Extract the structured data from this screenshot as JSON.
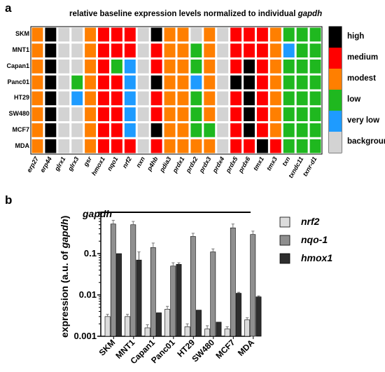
{
  "panel_a": {
    "letter": "a",
    "title_prefix": "relative baseline expression levels normalized to individual ",
    "title_gene": "gapdh"
  },
  "panel_b": {
    "letter": "b",
    "ylabel_prefix": "expression (a.u. of ",
    "ylabel_gene": "gapdh",
    "ylabel_suffix": ")",
    "reference_label": "gapdh"
  },
  "colors": {
    "high": "#000000",
    "medium": "#ff0000",
    "modest": "#ff7f00",
    "low": "#1fb81f",
    "very_low": "#1e9bff",
    "background": "#d3d3d3",
    "nrf2": "#dcdcdc",
    "nqo1": "#8f8f8f",
    "hmox1": "#2e2e2e"
  },
  "chart_data": [
    {
      "type": "heatmap",
      "title": "relative baseline expression levels normalized to individual gapdh",
      "rows": [
        "SKM",
        "MNT1",
        "Capan1",
        "Panc01",
        "HT29",
        "SW480",
        "MCF7",
        "MDA"
      ],
      "columns": [
        "erp27",
        "erp44",
        "glrx1",
        "glrx3",
        "gsr",
        "hmox1",
        "nqo1",
        "nrf2",
        "nxn",
        "p4hb",
        "pdia3",
        "prdx1",
        "prdx2",
        "prdx3",
        "prdx4",
        "prdx5",
        "prdx6",
        "tmx1",
        "tmx3",
        "txn",
        "txndc11",
        "txnr-d1"
      ],
      "legend": [
        {
          "key": "high",
          "label": "high"
        },
        {
          "key": "medium",
          "label": "medium"
        },
        {
          "key": "modest",
          "label": "modest"
        },
        {
          "key": "low",
          "label": "low"
        },
        {
          "key": "very_low",
          "label": "very low"
        },
        {
          "key": "background",
          "label": "background"
        }
      ],
      "values": [
        [
          "modest",
          "high",
          "background",
          "background",
          "modest",
          "medium",
          "medium",
          "medium",
          "background",
          "high",
          "modest",
          "modest",
          "background",
          "modest",
          "background",
          "medium",
          "medium",
          "medium",
          "modest",
          "low",
          "low",
          "low"
        ],
        [
          "modest",
          "high",
          "background",
          "background",
          "modest",
          "medium",
          "medium",
          "medium",
          "background",
          "medium",
          "modest",
          "modest",
          "low",
          "modest",
          "background",
          "medium",
          "medium",
          "medium",
          "modest",
          "very_low",
          "low",
          "low"
        ],
        [
          "modest",
          "high",
          "background",
          "background",
          "modest",
          "medium",
          "low",
          "very_low",
          "background",
          "medium",
          "modest",
          "modest",
          "low",
          "modest",
          "background",
          "medium",
          "high",
          "medium",
          "modest",
          "low",
          "low",
          "low"
        ],
        [
          "modest",
          "high",
          "background",
          "low",
          "modest",
          "medium",
          "medium",
          "very_low",
          "background",
          "high",
          "modest",
          "modest",
          "very_low",
          "modest",
          "background",
          "high",
          "high",
          "medium",
          "modest",
          "low",
          "low",
          "low"
        ],
        [
          "modest",
          "high",
          "background",
          "very_low",
          "modest",
          "medium",
          "medium",
          "very_low",
          "background",
          "medium",
          "modest",
          "modest",
          "low",
          "modest",
          "background",
          "medium",
          "high",
          "medium",
          "modest",
          "low",
          "low",
          "low"
        ],
        [
          "modest",
          "high",
          "background",
          "background",
          "modest",
          "medium",
          "medium",
          "very_low",
          "background",
          "medium",
          "modest",
          "modest",
          "low",
          "modest",
          "background",
          "medium",
          "high",
          "medium",
          "modest",
          "low",
          "low",
          "low"
        ],
        [
          "modest",
          "high",
          "background",
          "background",
          "modest",
          "medium",
          "medium",
          "very_low",
          "background",
          "high",
          "modest",
          "modest",
          "low",
          "low",
          "background",
          "medium",
          "high",
          "medium",
          "modest",
          "low",
          "low",
          "low"
        ],
        [
          "modest",
          "high",
          "background",
          "background",
          "modest",
          "medium",
          "medium",
          "medium",
          "background",
          "medium",
          "modest",
          "modest",
          "modest",
          "modest",
          "background",
          "medium",
          "medium",
          "high",
          "medium",
          "low",
          "low",
          "low"
        ]
      ]
    },
    {
      "type": "bar",
      "categories": [
        "SKM",
        "MNT1",
        "Capan1",
        "Panc01",
        "HT29",
        "SW480",
        "MCF7",
        "MDA"
      ],
      "series": [
        {
          "name": "nrf2",
          "values": [
            0.003,
            0.003,
            0.0016,
            0.0045,
            0.0017,
            0.0015,
            0.0015,
            0.0025
          ],
          "errors": [
            0.0004,
            0.0004,
            0.0003,
            0.0008,
            0.0003,
            0.0003,
            0.0002,
            0.0003
          ]
        },
        {
          "name": "nqo-1",
          "values": [
            0.52,
            0.5,
            0.14,
            0.05,
            0.26,
            0.11,
            0.42,
            0.29
          ],
          "errors": [
            0.12,
            0.1,
            0.04,
            0.01,
            0.05,
            0.02,
            0.1,
            0.06
          ]
        },
        {
          "name": "hmox1",
          "values": [
            0.1,
            0.07,
            0.0037,
            0.055,
            0.0043,
            0.0022,
            0.011,
            0.009
          ],
          "errors": [
            0.0,
            0.04,
            0.0,
            0.005,
            0.0,
            0.0,
            0.0006,
            0.0005
          ]
        }
      ],
      "ylabel": "expression (a.u. of gapdh)",
      "ylim": [
        0.001,
        1
      ],
      "yscale": "log",
      "yticks": [
        "0.001",
        "0.01",
        "0.1",
        "1"
      ],
      "reference_line": {
        "label": "gapdh",
        "value": 1
      },
      "legend_position": "right"
    }
  ]
}
